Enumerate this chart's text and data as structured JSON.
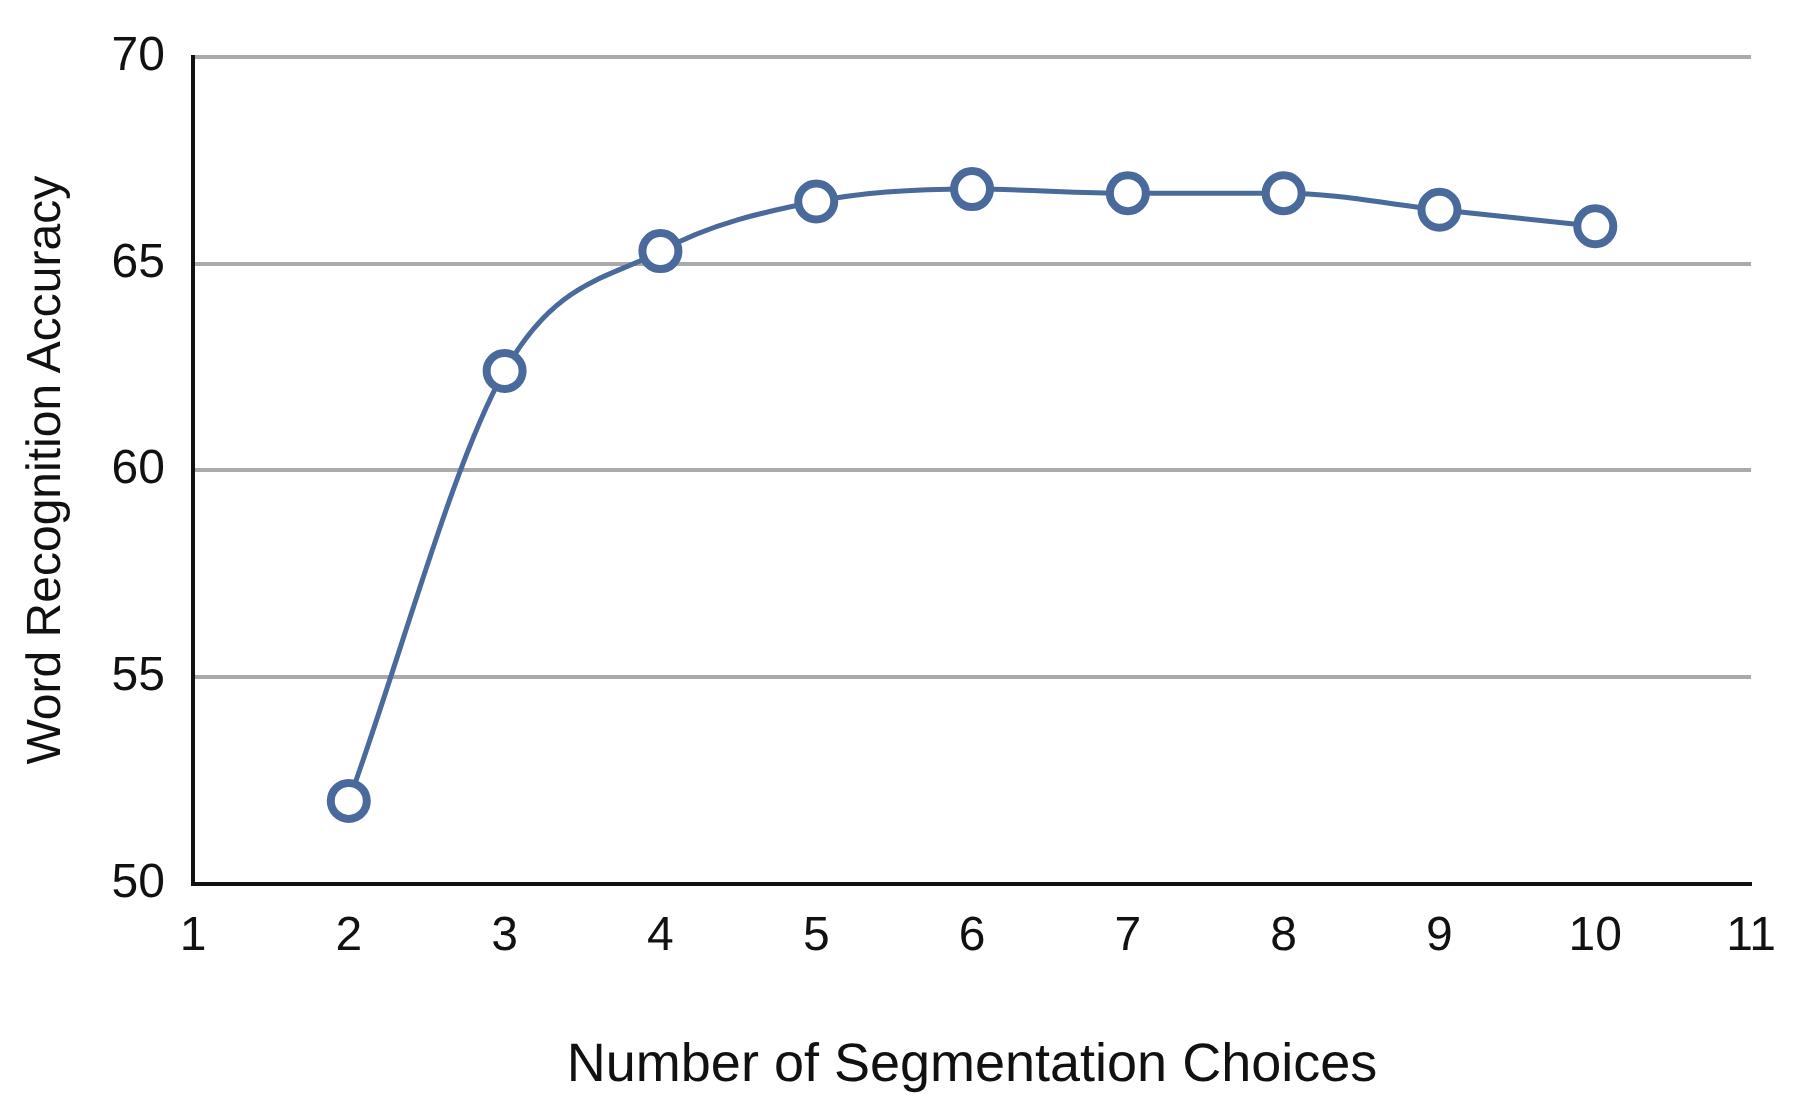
{
  "chart_data": {
    "type": "line",
    "xlabel": "Number of Segmentation Choices",
    "ylabel": "Word Recognition Accuracy",
    "x": [
      2,
      3,
      4,
      5,
      6,
      7,
      8,
      9,
      10
    ],
    "series": [
      {
        "color": "#4a6a9c",
        "values": [
          52.0,
          62.4,
          65.3,
          66.5,
          66.8,
          66.7,
          66.7,
          66.3,
          65.9
        ]
      }
    ],
    "xlim": [
      1,
      11
    ],
    "xticks": [
      1,
      2,
      3,
      4,
      5,
      6,
      7,
      8,
      9,
      10,
      11
    ],
    "ylim": [
      50,
      70
    ],
    "yticks": [
      50,
      55,
      60,
      65,
      70
    ],
    "grid": "y",
    "legend": false,
    "marker": "circle",
    "line_style": "solid"
  }
}
